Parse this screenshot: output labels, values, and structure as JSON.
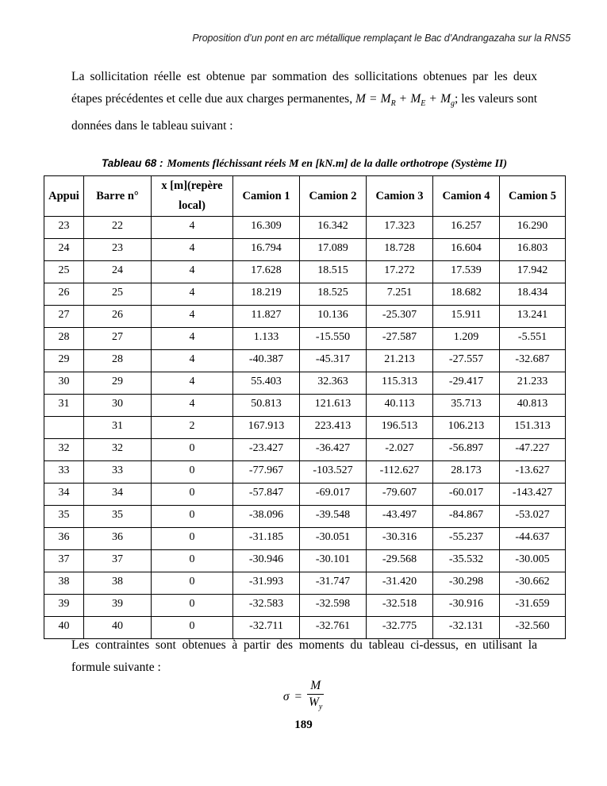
{
  "page": {
    "running_header": "Proposition d’un pont en arc métallique remplaçant le Bac d’Andrangazaha sur la RNS5",
    "page_number": "189"
  },
  "intro": {
    "before": "La sollicitation réelle est obtenue par sommation des sollicitations obtenues par les deux étapes précédentes et celle due aux charges permanentes,",
    "formula": {
      "lhs": "M",
      "eq": "=",
      "m1": "M",
      "s1": "R",
      "plus1": "+",
      "m2": "M",
      "s2": "E",
      "plus2": "+",
      "m3": "M",
      "s3": "g"
    },
    "after": "; les valeurs sont données dans le tableau suivant :"
  },
  "table": {
    "title_prefix": "Tableau 68 :",
    "title_rest": "Moments fléchissant réels M en [kN.m] de la dalle orthotrope (Système II)",
    "columns": [
      "Appui",
      "Barre n°",
      "x [m](repère local)",
      "Camion 1",
      "Camion 2",
      "Camion 3",
      "Camion 4",
      "Camion 5"
    ],
    "rows": [
      [
        "23",
        "22",
        "4",
        "16.309",
        "16.342",
        "17.323",
        "16.257",
        "16.290"
      ],
      [
        "24",
        "23",
        "4",
        "16.794",
        "17.089",
        "18.728",
        "16.604",
        "16.803"
      ],
      [
        "25",
        "24",
        "4",
        "17.628",
        "18.515",
        "17.272",
        "17.539",
        "17.942"
      ],
      [
        "26",
        "25",
        "4",
        "18.219",
        "18.525",
        "7.251",
        "18.682",
        "18.434"
      ],
      [
        "27",
        "26",
        "4",
        "11.827",
        "10.136",
        "-25.307",
        "15.911",
        "13.241"
      ],
      [
        "28",
        "27",
        "4",
        "1.133",
        "-15.550",
        "-27.587",
        "1.209",
        "-5.551"
      ],
      [
        "29",
        "28",
        "4",
        "-40.387",
        "-45.317",
        "21.213",
        "-27.557",
        "-32.687"
      ],
      [
        "30",
        "29",
        "4",
        "55.403",
        "32.363",
        "115.313",
        "-29.417",
        "21.233"
      ],
      [
        "31",
        "30",
        "4",
        "50.813",
        "121.613",
        "40.113",
        "35.713",
        "40.813"
      ],
      [
        "",
        "31",
        "2",
        "167.913",
        "223.413",
        "196.513",
        "106.213",
        "151.313"
      ],
      [
        "32",
        "32",
        "0",
        "-23.427",
        "-36.427",
        "-2.027",
        "-56.897",
        "-47.227"
      ],
      [
        "33",
        "33",
        "0",
        "-77.967",
        "-103.527",
        "-112.627",
        "28.173",
        "-13.627"
      ],
      [
        "34",
        "34",
        "0",
        "-57.847",
        "-69.017",
        "-79.607",
        "-60.017",
        "-143.427"
      ],
      [
        "35",
        "35",
        "0",
        "-38.096",
        "-39.548",
        "-43.497",
        "-84.867",
        "-53.027"
      ],
      [
        "36",
        "36",
        "0",
        "-31.185",
        "-30.051",
        "-30.316",
        "-55.237",
        "-44.637"
      ],
      [
        "37",
        "37",
        "0",
        "-30.946",
        "-30.101",
        "-29.568",
        "-35.532",
        "-30.005"
      ],
      [
        "38",
        "38",
        "0",
        "-31.993",
        "-31.747",
        "-31.420",
        "-30.298",
        "-30.662"
      ],
      [
        "39",
        "39",
        "0",
        "-32.583",
        "-32.598",
        "-32.518",
        "-30.916",
        "-31.659"
      ],
      [
        "40",
        "40",
        "0",
        "-32.711",
        "-32.761",
        "-32.775",
        "-32.131",
        "-32.560"
      ]
    ]
  },
  "outro": "Les contraintes sont obtenues à partir des moments du tableau ci-dessus, en utilisant la formule suivante :",
  "formula": {
    "sigma": "σ",
    "eq": "=",
    "num": "M",
    "den_base": "W",
    "den_sub": "y"
  },
  "colors": {
    "text": "#000000",
    "border": "#000000",
    "background": "#ffffff"
  }
}
